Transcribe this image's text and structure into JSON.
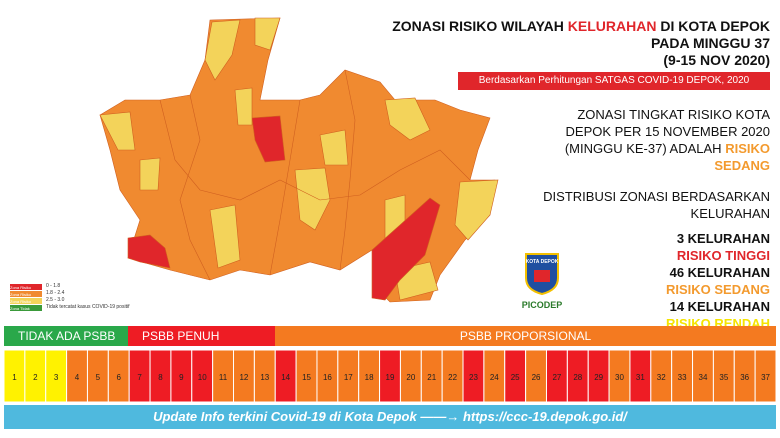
{
  "header": {
    "title_pre": "ZONASI RISIKO WILAYAH ",
    "title_red": "KELURAHAN",
    "title_post": " DI KOTA DEPOK",
    "line2": "PADA MINGGU 37",
    "line3": "(9-15 NOV 2020)",
    "source": "Berdasarkan Perhitungan SATGAS COVID-19 DEPOK, 2020"
  },
  "summary": {
    "text": "ZONASI TINGKAT RISIKO KOTA DEPOK PER 15 NOVEMBER  2020 (MINGGU KE-37) ADALAH",
    "level": "RISIKO SEDANG"
  },
  "distribution": {
    "heading": "DISTRIBUSI ZONASI BERDASARKAN KELURAHAN",
    "items": [
      {
        "count": "3 KELURAHAN",
        "level": "RISIKO TINGGI",
        "color": "#e0262b"
      },
      {
        "count": "46 KELURAHAN",
        "level": "RISIKO SEDANG",
        "color": "#f39a2e"
      },
      {
        "count": "14 KELURAHAN",
        "level": "RISIKO RENDAH",
        "color": "#f5e400"
      }
    ]
  },
  "legend": [
    {
      "name": "Zona Risiko Tinggi",
      "range": "0 - 1.8",
      "color": "#e0262b"
    },
    {
      "name": "Zona Risiko Sedang",
      "range": "1.8 - 2.4",
      "color": "#f08a30"
    },
    {
      "name": "Zona Risiko Rendah",
      "range": "2.5 - 3.0",
      "color": "#f3d35a"
    },
    {
      "name": "Zona Tidak Terdampak",
      "range": "Tidak tercatat kasus COVID-19 positif",
      "color": "#3a9a3a"
    }
  ],
  "logo": {
    "name": "KOTA DEPOK",
    "brand": "PICODEP"
  },
  "timeline": {
    "sections": [
      {
        "name": "TIDAK ADA PSBB",
        "color": "#2aa84a"
      },
      {
        "name": "PSBB PENUH",
        "color": "#ee1c24"
      },
      {
        "name": "PSBB PROPORSIONAL",
        "color": "#f47a20"
      }
    ],
    "weeks": [
      {
        "label": 1,
        "color": "#fff200"
      },
      {
        "label": 2,
        "color": "#fff200"
      },
      {
        "label": 3,
        "color": "#fff200"
      },
      {
        "label": 4,
        "color": "#f47a20"
      },
      {
        "label": 5,
        "color": "#f47a20"
      },
      {
        "label": 6,
        "color": "#f47a20"
      },
      {
        "label": 7,
        "color": "#ee1c24"
      },
      {
        "label": 8,
        "color": "#ee1c24"
      },
      {
        "label": 9,
        "color": "#ee1c24"
      },
      {
        "label": 10,
        "color": "#ee1c24"
      },
      {
        "label": 11,
        "color": "#f47a20"
      },
      {
        "label": 12,
        "color": "#f47a20"
      },
      {
        "label": 13,
        "color": "#f47a20"
      },
      {
        "label": 14,
        "color": "#ee1c24"
      },
      {
        "label": 15,
        "color": "#f47a20"
      },
      {
        "label": 16,
        "color": "#f47a20"
      },
      {
        "label": 17,
        "color": "#f47a20"
      },
      {
        "label": 18,
        "color": "#f47a20"
      },
      {
        "label": 19,
        "color": "#ee1c24"
      },
      {
        "label": 20,
        "color": "#f47a20"
      },
      {
        "label": 21,
        "color": "#f47a20"
      },
      {
        "label": 22,
        "color": "#f47a20"
      },
      {
        "label": 23,
        "color": "#ee1c24"
      },
      {
        "label": 24,
        "color": "#f47a20"
      },
      {
        "label": 25,
        "color": "#ee1c24"
      },
      {
        "label": 26,
        "color": "#f47a20"
      },
      {
        "label": 27,
        "color": "#ee1c24"
      },
      {
        "label": 28,
        "color": "#ee1c24"
      },
      {
        "label": 29,
        "color": "#ee1c24"
      },
      {
        "label": 30,
        "color": "#f47a20"
      },
      {
        "label": 31,
        "color": "#ee1c24"
      },
      {
        "label": 32,
        "color": "#f47a20"
      },
      {
        "label": 33,
        "color": "#f47a20"
      },
      {
        "label": 34,
        "color": "#f47a20"
      },
      {
        "label": 35,
        "color": "#f47a20"
      },
      {
        "label": 36,
        "color": "#f47a20"
      },
      {
        "label": 37,
        "color": "#f47a20"
      }
    ]
  },
  "footer": {
    "text": "Update Info terkini Covid-19 di Kota Depok",
    "arrow": "——→",
    "url": "https://ccc-19.depok.go.id/"
  }
}
